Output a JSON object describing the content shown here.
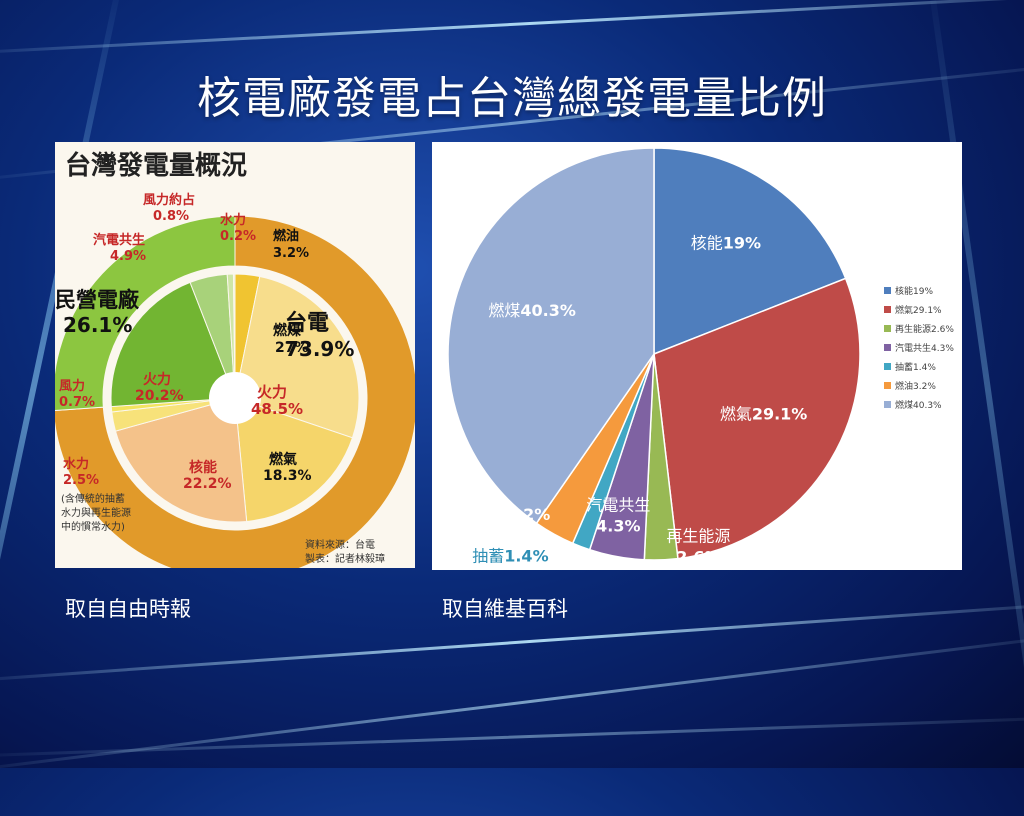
{
  "slide": {
    "title": "核電廠發電占台灣總發電量比例",
    "caption_left": "取自自由時報",
    "caption_right": "取自維基百科"
  },
  "chart_data": [
    {
      "type": "pie",
      "title": "台灣發電量概況",
      "outer_ring": {
        "series": [
          {
            "name": "台電",
            "value": 73.9,
            "color": "#e19a2a"
          },
          {
            "name": "民營電廠",
            "value": 26.1,
            "color": "#8cc640"
          }
        ]
      },
      "inner_ring": {
        "series": [
          {
            "name": "燃油",
            "value": 3.2,
            "color": "#f0c431"
          },
          {
            "name": "燃煤",
            "value": 27,
            "color": "#f7dd8c"
          },
          {
            "name": "燃氣",
            "value": 18.3,
            "color": "#f5d56a"
          },
          {
            "name": "核能",
            "value": 22.2,
            "color": "#f4c28a"
          },
          {
            "name": "水力",
            "value": 2.5,
            "color": "#f7e27a"
          },
          {
            "name": "風力",
            "value": 0.7,
            "color": "#f3e45f"
          },
          {
            "name": "火力",
            "value": 20.2,
            "color": "#72b532"
          },
          {
            "name": "汽電共生",
            "value": 4.9,
            "color": "#a8d27a"
          },
          {
            "name": "風力約占",
            "value": 0.8,
            "color": "#cfe6a6"
          },
          {
            "name": "水力",
            "value": 0.2,
            "color": "#e8f2d0"
          }
        ]
      },
      "labels": {
        "taipower": "台電",
        "taipower_pct": "73.9%",
        "private": "民營電廠",
        "private_pct": "26.1%",
        "wind_approx": "風力約占",
        "wind_approx_pct": "0.8%",
        "hydro_small": "水力",
        "hydro_small_pct": "0.2%",
        "oil": "燃油",
        "oil_pct": "3.2%",
        "cogen": "汽電共生",
        "cogen_pct": "4.9%",
        "coal": "燃煤",
        "coal_pct": "27%",
        "thermal_total": "火力",
        "thermal_total_pct": "48.5%",
        "thermal_private": "火力",
        "thermal_private_pct": "20.2%",
        "gas": "燃氣",
        "gas_pct": "18.3%",
        "nuclear": "核能",
        "nuclear_pct": "22.2%",
        "wind": "風力",
        "wind_pct": "0.7%",
        "hydro": "水力",
        "hydro_pct": "2.5%",
        "hydro_note_1": "(含傳統的抽蓄",
        "hydro_note_2": "水力與再生能源",
        "hydro_note_3": "中的慣常水力)",
        "source_1": "資料來源：台電",
        "source_2": "製表：記者林毅璋"
      }
    },
    {
      "type": "pie",
      "series": [
        {
          "name": "核能",
          "value": 19,
          "legend": "核能19%",
          "label": "核能",
          "pct": "19%",
          "color": "#4f7ebd"
        },
        {
          "name": "燃氣",
          "value": 29.1,
          "legend": "燃氣29.1%",
          "label": "燃氣",
          "pct": "29.1%",
          "color": "#bf4b48"
        },
        {
          "name": "再生能源",
          "value": 2.6,
          "legend": "再生能源2.6%",
          "label": "再生能源",
          "pct": "2.6%",
          "color": "#98b954"
        },
        {
          "name": "汽電共生",
          "value": 4.3,
          "legend": "汽電共生4.3%",
          "label": "汽電共生",
          "pct": "4.3%",
          "color": "#7f62a2"
        },
        {
          "name": "抽蓄",
          "value": 1.4,
          "legend": "抽蓄1.4%",
          "label": "抽蓄",
          "pct": "1.4%",
          "color": "#41a7c4"
        },
        {
          "name": "燃油",
          "value": 3.2,
          "legend": "燃油3.2%",
          "label": "燃油",
          "pct": "3.2%",
          "color": "#f59a3d"
        },
        {
          "name": "燃煤",
          "value": 40.3,
          "legend": "燃煤40.3%",
          "label": "燃煤",
          "pct": "40.3%",
          "color": "#98aed5"
        }
      ],
      "legend_position": "right"
    }
  ]
}
